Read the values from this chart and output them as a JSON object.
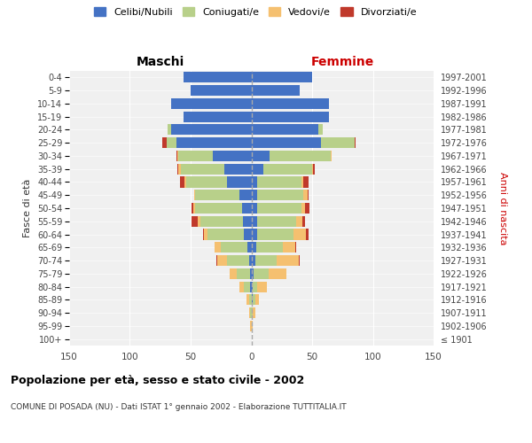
{
  "age_groups": [
    "100+",
    "95-99",
    "90-94",
    "85-89",
    "80-84",
    "75-79",
    "70-74",
    "65-69",
    "60-64",
    "55-59",
    "50-54",
    "45-49",
    "40-44",
    "35-39",
    "30-34",
    "25-29",
    "20-24",
    "15-19",
    "10-14",
    "5-9",
    "0-4"
  ],
  "birth_years": [
    "≤ 1901",
    "1902-1906",
    "1907-1911",
    "1912-1916",
    "1917-1921",
    "1922-1926",
    "1927-1931",
    "1932-1936",
    "1937-1941",
    "1942-1946",
    "1947-1951",
    "1952-1956",
    "1957-1961",
    "1962-1966",
    "1967-1971",
    "1972-1976",
    "1977-1981",
    "1982-1986",
    "1987-1991",
    "1992-1996",
    "1997-2001"
  ],
  "male": {
    "celibe": [
      0,
      0,
      0,
      0,
      1,
      1,
      2,
      3,
      6,
      7,
      8,
      10,
      20,
      22,
      32,
      62,
      66,
      56,
      66,
      50,
      56
    ],
    "coniugato": [
      0,
      0,
      1,
      2,
      5,
      11,
      18,
      22,
      30,
      35,
      38,
      36,
      34,
      36,
      28,
      8,
      3,
      0,
      0,
      0,
      0
    ],
    "vedovo": [
      0,
      1,
      1,
      2,
      4,
      6,
      8,
      5,
      3,
      2,
      2,
      1,
      1,
      2,
      1,
      0,
      0,
      0,
      0,
      0,
      0
    ],
    "divorziato": [
      0,
      0,
      0,
      0,
      0,
      0,
      1,
      0,
      1,
      5,
      1,
      0,
      4,
      1,
      1,
      3,
      0,
      0,
      0,
      0,
      0
    ]
  },
  "female": {
    "nubile": [
      0,
      0,
      0,
      1,
      1,
      2,
      3,
      4,
      5,
      5,
      5,
      5,
      5,
      10,
      15,
      57,
      55,
      64,
      64,
      40,
      50
    ],
    "coniugata": [
      0,
      0,
      1,
      2,
      4,
      12,
      18,
      22,
      30,
      32,
      36,
      38,
      36,
      40,
      50,
      28,
      4,
      0,
      0,
      0,
      0
    ],
    "vedova": [
      0,
      1,
      2,
      3,
      8,
      15,
      18,
      10,
      10,
      5,
      3,
      3,
      2,
      1,
      1,
      0,
      0,
      0,
      0,
      0,
      0
    ],
    "divorziata": [
      0,
      0,
      0,
      0,
      0,
      0,
      1,
      1,
      2,
      2,
      4,
      1,
      4,
      1,
      0,
      1,
      0,
      0,
      0,
      0,
      0
    ]
  },
  "colors": {
    "celibe": "#4472c4",
    "coniugato": "#b8d08a",
    "vedovo": "#f5c070",
    "divorziato": "#c0392b"
  },
  "xlim": 150,
  "title": "Popolazione per età, sesso e stato civile - 2002",
  "subtitle": "COMUNE DI POSADA (NU) - Dati ISTAT 1° gennaio 2002 - Elaborazione TUTTITALIA.IT",
  "legend_labels": [
    "Celibi/Nubili",
    "Coniugati/e",
    "Vedovi/e",
    "Divorziati/e"
  ],
  "xlabel_left": "Maschi",
  "xlabel_right": "Femmine",
  "ylabel_left": "Fasce di età",
  "ylabel_right": "Anni di nascita",
  "bg_color": "#f0f0f0"
}
